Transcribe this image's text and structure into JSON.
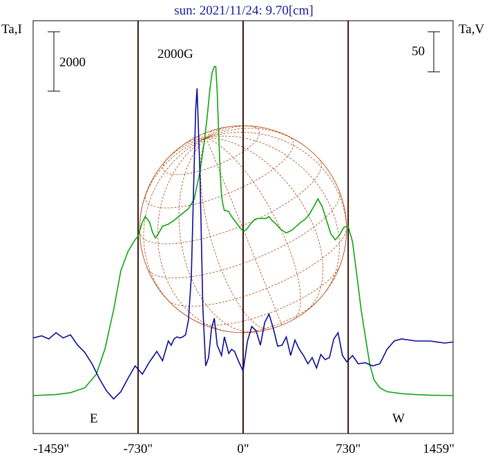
{
  "chart_data": {
    "type": "line",
    "title": "sun: 2021/11/24: 9.70[cm]",
    "left_axis_label": "Ta,I",
    "right_axis_label": "Ta,V",
    "left_scale_bar_label": "2000",
    "right_scale_bar_label": "50",
    "peak_annotation": "2000G",
    "east_label": "E",
    "west_label": "W",
    "x_ticks": [
      {
        "value": -1459,
        "label": "-1459\""
      },
      {
        "value": -730,
        "label": "-730\""
      },
      {
        "value": 0,
        "label": "0\""
      },
      {
        "value": 730,
        "label": "730\""
      },
      {
        "value": 1459,
        "label": "1459\""
      }
    ],
    "xlim": [
      -1459,
      1459
    ],
    "disk_radius_arcsec": 730,
    "vertical_markers": [
      -730,
      0,
      730
    ],
    "colors": {
      "intensity": "#0ea30e",
      "polarization": "#0a0a96",
      "disk": "#b35a2a",
      "title": "#1a1a9a"
    },
    "series": [
      {
        "id": "intensity",
        "y_units": "relative",
        "x": [
          -1459,
          -1300,
          -1200,
          -1100,
          -1020,
          -960,
          -900,
          -850,
          -800,
          -760,
          -730,
          -700,
          -680,
          -650,
          -630,
          -610,
          -590,
          -560,
          -520,
          -480,
          -430,
          -380,
          -340,
          -300,
          -270,
          -250,
          -230,
          -215,
          -200,
          -190,
          -180,
          -170,
          -160,
          -150,
          -140,
          -130,
          -120,
          -100,
          -80,
          -50,
          -20,
          0,
          20,
          50,
          80,
          100,
          130,
          160,
          180,
          200,
          230,
          260,
          300,
          340,
          370,
          400,
          430,
          460,
          490,
          520,
          550,
          580,
          610,
          640,
          670,
          700,
          730,
          760,
          790,
          820,
          850,
          880,
          910,
          950,
          1000,
          1100,
          1200,
          1300,
          1459
        ],
        "y": [
          0.0,
          0.05,
          0.15,
          0.4,
          1.1,
          2.4,
          4.4,
          6.4,
          7.4,
          7.9,
          8.2,
          8.9,
          9.2,
          8.9,
          8.4,
          8.1,
          8.3,
          8.7,
          8.8,
          9.0,
          9.3,
          9.6,
          10.1,
          11.5,
          13.0,
          14.3,
          15.8,
          16.6,
          16.9,
          16.9,
          15.6,
          13.5,
          11.5,
          10.3,
          9.8,
          9.5,
          9.5,
          9.45,
          9.2,
          8.9,
          8.6,
          8.45,
          8.5,
          8.8,
          9.05,
          9.1,
          9.1,
          9.1,
          9.2,
          9.0,
          8.8,
          8.55,
          8.35,
          8.5,
          8.7,
          8.9,
          9.05,
          9.3,
          9.7,
          10.1,
          9.7,
          9.0,
          8.3,
          8.0,
          8.25,
          8.65,
          8.7,
          7.9,
          6.2,
          4.4,
          3.0,
          1.6,
          0.8,
          0.4,
          0.2,
          0.1,
          0.05,
          0.02,
          0.0
        ]
      },
      {
        "id": "polarization",
        "y_units": "relative",
        "x": [
          -1459,
          -1400,
          -1350,
          -1300,
          -1250,
          -1200,
          -1150,
          -1100,
          -1050,
          -1000,
          -950,
          -900,
          -850,
          -800,
          -750,
          -700,
          -650,
          -600,
          -560,
          -520,
          -500,
          -480,
          -460,
          -440,
          -420,
          -400,
          -380,
          -360,
          -345,
          -330,
          -320,
          -300,
          -280,
          -260,
          -240,
          -220,
          -200,
          -180,
          -150,
          -130,
          -100,
          -80,
          -60,
          -30,
          0,
          30,
          60,
          90,
          120,
          150,
          180,
          210,
          240,
          270,
          300,
          330,
          360,
          390,
          420,
          450,
          480,
          510,
          540,
          570,
          600,
          630,
          660,
          690,
          720,
          760,
          800,
          850,
          900,
          950,
          1000,
          1050,
          1100,
          1200,
          1300,
          1400,
          1459
        ],
        "y": [
          1.55,
          1.65,
          1.5,
          1.8,
          1.55,
          1.7,
          1.2,
          0.85,
          0.3,
          -0.4,
          -1.0,
          -1.4,
          -1.05,
          -0.4,
          0.2,
          -0.2,
          0.4,
          0.9,
          0.45,
          1.4,
          1.2,
          1.5,
          1.6,
          1.55,
          1.6,
          1.7,
          2.4,
          4.5,
          8.5,
          12.5,
          13.6,
          9.5,
          3.0,
          0.2,
          0.6,
          2.0,
          2.5,
          1.2,
          0.7,
          1.6,
          0.8,
          1.0,
          0.9,
          0.4,
          -0.05,
          1.4,
          2.1,
          1.9,
          1.2,
          2.3,
          2.7,
          2.0,
          1.15,
          1.2,
          1.6,
          0.7,
          1.45,
          1.0,
          0.7,
          0.3,
          0.6,
          0.1,
          0.75,
          0.5,
          0.6,
          1.5,
          1.8,
          0.7,
          0.4,
          0.7,
          0.3,
          0.35,
          0.2,
          0.3,
          1.0,
          1.4,
          1.5,
          1.4,
          1.4,
          1.3,
          1.35
        ]
      }
    ]
  }
}
